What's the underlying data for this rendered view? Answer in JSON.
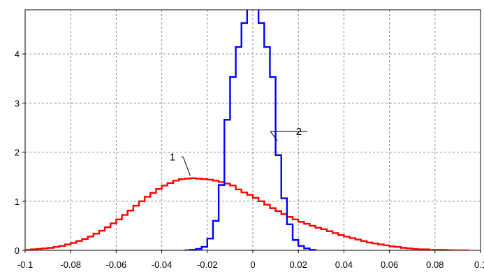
{
  "chart_data": {
    "type": "line",
    "xlim": [
      -0.1,
      0.1
    ],
    "ylim": [
      0,
      4.9
    ],
    "x_ticks": [
      "-0.1",
      "-0.08",
      "-0.06",
      "-0.04",
      "-0.02",
      "0",
      "0.02",
      "0.04",
      "0.06",
      "0.08",
      "0.1"
    ],
    "x_tick_values": [
      -0.1,
      -0.08,
      -0.06,
      -0.04,
      -0.02,
      0,
      0.02,
      0.04,
      0.06,
      0.08,
      0.1
    ],
    "y_ticks": [
      "0",
      "1",
      "2",
      "3",
      "4"
    ],
    "y_tick_values": [
      0,
      1,
      2,
      3,
      4
    ],
    "grid": true,
    "series": [
      {
        "name": "1",
        "color": "#ff0000",
        "step": true,
        "x": [
          -0.1,
          -0.0975,
          -0.095,
          -0.0925,
          -0.09,
          -0.0875,
          -0.085,
          -0.0825,
          -0.08,
          -0.0775,
          -0.075,
          -0.0725,
          -0.07,
          -0.0675,
          -0.065,
          -0.0625,
          -0.06,
          -0.0575,
          -0.055,
          -0.0525,
          -0.05,
          -0.0475,
          -0.045,
          -0.0425,
          -0.04,
          -0.0375,
          -0.035,
          -0.0325,
          -0.03,
          -0.0275,
          -0.025,
          -0.0225,
          -0.02,
          -0.0175,
          -0.015,
          -0.0125,
          -0.01,
          -0.0075,
          -0.005,
          -0.0025,
          0,
          0.0025,
          0.005,
          0.0075,
          0.01,
          0.0125,
          0.015,
          0.0175,
          0.02,
          0.0225,
          0.025,
          0.0275,
          0.03,
          0.0325,
          0.035,
          0.0375,
          0.04,
          0.0425,
          0.045,
          0.0475,
          0.05,
          0.0525,
          0.055,
          0.0575,
          0.06,
          0.0625,
          0.065,
          0.0675,
          0.07,
          0.0725,
          0.075,
          0.0775,
          0.08,
          0.0825,
          0.085,
          0.0875,
          0.09,
          0.0925
        ],
        "y": [
          0.01,
          0.02,
          0.03,
          0.04,
          0.05,
          0.07,
          0.09,
          0.12,
          0.15,
          0.19,
          0.23,
          0.28,
          0.34,
          0.4,
          0.47,
          0.55,
          0.63,
          0.72,
          0.81,
          0.91,
          1.0,
          1.09,
          1.17,
          1.25,
          1.32,
          1.37,
          1.42,
          1.45,
          1.46,
          1.47,
          1.46,
          1.45,
          1.44,
          1.42,
          1.39,
          1.36,
          1.32,
          1.24,
          1.18,
          1.13,
          1.07,
          1.0,
          0.93,
          0.86,
          0.8,
          0.74,
          0.68,
          0.63,
          0.58,
          0.54,
          0.5,
          0.46,
          0.43,
          0.39,
          0.35,
          0.31,
          0.28,
          0.25,
          0.22,
          0.19,
          0.16,
          0.14,
          0.12,
          0.1,
          0.08,
          0.07,
          0.05,
          0.04,
          0.03,
          0.02,
          0.02,
          0.01,
          0.01,
          0.01,
          0.005,
          0.0,
          0.0,
          0.0
        ]
      },
      {
        "name": "2",
        "color": "#0000ff",
        "step": true,
        "x": [
          -0.03,
          -0.0275,
          -0.025,
          -0.0225,
          -0.02,
          -0.0175,
          -0.015,
          -0.0125,
          -0.01,
          -0.0075,
          -0.005,
          -0.0025,
          0,
          0.0025,
          0.005,
          0.0075,
          0.01,
          0.0125,
          0.015,
          0.0175,
          0.02,
          0.0225,
          0.025
        ],
        "y": [
          0.0,
          0.01,
          0.03,
          0.07,
          0.24,
          0.6,
          1.33,
          2.66,
          3.53,
          4.14,
          4.63,
          5.5,
          5.5,
          4.63,
          4.14,
          3.53,
          1.94,
          1.06,
          0.53,
          0.21,
          0.09,
          0.04,
          0.01
        ]
      }
    ],
    "annotations": [
      {
        "text": "1",
        "series": "1",
        "label_x": -0.034,
        "label_y": 1.9,
        "point_x": -0.0275,
        "point_y": 1.52
      },
      {
        "text": "2",
        "series": "2",
        "label_x": 0.0215,
        "label_y": 2.42,
        "point_x": 0.0108,
        "point_y": 2.23
      }
    ]
  }
}
